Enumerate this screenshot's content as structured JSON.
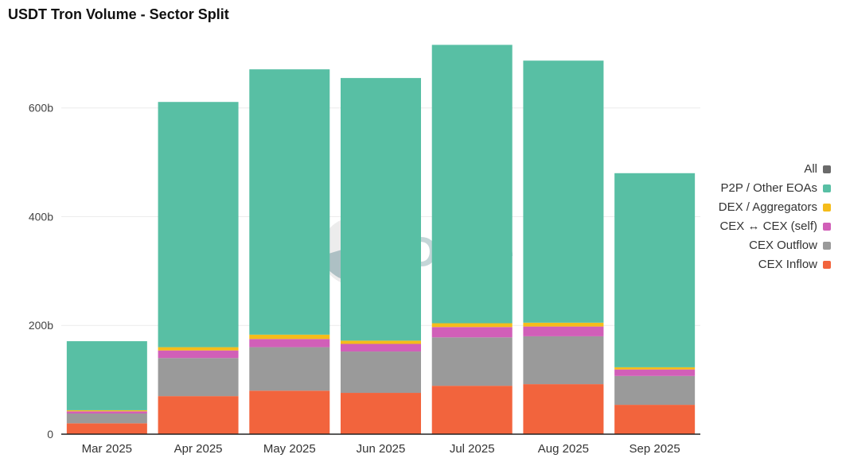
{
  "chart_data": {
    "type": "bar",
    "stacked": true,
    "title": "USDT Tron Volume - Sector Split",
    "categories": [
      "Mar 2025",
      "Apr 2025",
      "May 2025",
      "Jun 2025",
      "Jul 2025",
      "Aug 2025",
      "Sep 2025"
    ],
    "series": [
      {
        "name": "CEX Inflow",
        "color": "#f2643d",
        "values": [
          20,
          70,
          80,
          76,
          89,
          92,
          54
        ]
      },
      {
        "name": "CEX Outflow",
        "color": "#9a9a9a",
        "values": [
          18,
          70,
          80,
          76,
          89,
          88,
          53
        ]
      },
      {
        "name": "CEX ↔ CEX (self)",
        "color": "#d15fb8",
        "values": [
          4,
          14,
          15,
          14,
          19,
          18,
          12
        ]
      },
      {
        "name": "DEX / Aggregators",
        "color": "#f5bc1a",
        "values": [
          2,
          6,
          8,
          6,
          7,
          7,
          4
        ]
      },
      {
        "name": "P2P / Other EOAs",
        "color": "#58bfa4",
        "values": [
          127,
          451,
          488,
          483,
          512,
          482,
          357
        ]
      }
    ],
    "legend": [
      {
        "name": "All",
        "color": "#6a6a6a"
      },
      {
        "name": "P2P / Other EOAs",
        "color": "#58bfa4"
      },
      {
        "name": "DEX / Aggregators",
        "color": "#f5bc1a"
      },
      {
        "name": "CEX ↔ CEX (self)",
        "color": "#d15fb8"
      },
      {
        "name": "CEX Outflow",
        "color": "#9a9a9a"
      },
      {
        "name": "CEX Inflow",
        "color": "#f2643d"
      }
    ],
    "legend_position": "right",
    "yticks": [
      0,
      200,
      400,
      600
    ],
    "ytick_labels": [
      "0",
      "200b",
      "400b",
      "600b"
    ],
    "ylim": [
      0,
      740
    ],
    "grid": true,
    "watermark": "Dune"
  }
}
